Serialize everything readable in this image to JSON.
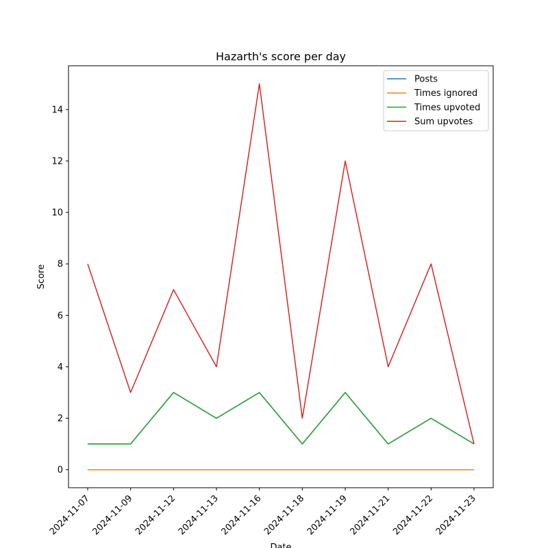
{
  "chart_data": {
    "type": "line",
    "title": "Hazarth's score per day",
    "xlabel": "Date",
    "ylabel": "Score",
    "x": [
      "2024-11-07",
      "2024-11-09",
      "2024-11-12",
      "2024-11-13",
      "2024-11-16",
      "2024-11-18",
      "2024-11-19",
      "2024-11-21",
      "2024-11-22",
      "2024-11-23"
    ],
    "ylim": [
      -0.7,
      15.7
    ],
    "yticks": [
      0,
      2,
      4,
      6,
      8,
      10,
      12,
      14
    ],
    "grid": false,
    "legend_position": "top-right",
    "series": [
      {
        "name": "Posts",
        "color": "#1f77b4",
        "values": [
          1,
          1,
          3,
          2,
          3,
          1,
          3,
          1,
          2,
          1
        ]
      },
      {
        "name": "Times ignored",
        "color": "#ff7f0e",
        "values": [
          0,
          0,
          0,
          0,
          0,
          0,
          0,
          0,
          0,
          0
        ]
      },
      {
        "name": "Times upvoted",
        "color": "#2ca02c",
        "values": [
          1,
          1,
          3,
          2,
          3,
          1,
          3,
          1,
          2,
          1
        ]
      },
      {
        "name": "Sum upvotes",
        "color": "#d62728",
        "values": [
          8,
          3,
          7,
          4,
          15,
          2,
          12,
          4,
          8,
          1
        ]
      }
    ]
  }
}
